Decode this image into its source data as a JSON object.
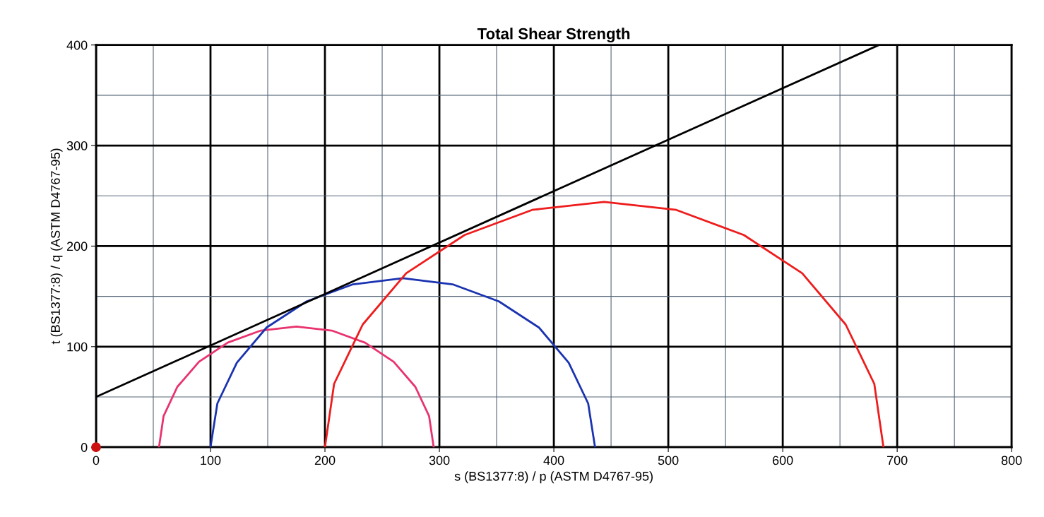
{
  "chart_data": {
    "type": "line",
    "title": "Total Shear Strength",
    "xlabel": "s (BS1377:8) / p (ASTM D4767-95)",
    "ylabel": "t (BS1377:8) / q (ASTM D4767-95)",
    "xlim": [
      0,
      800
    ],
    "ylim": [
      0,
      400
    ],
    "xticks": [
      0,
      {
        "value": 50,
        "label": null
      },
      100,
      {
        "value": 150,
        "label": null
      },
      200,
      {
        "value": 250,
        "label": null
      },
      300,
      {
        "value": 350,
        "label": null
      },
      400,
      {
        "value": 450,
        "label": null
      },
      500,
      {
        "value": 550,
        "label": null
      },
      600,
      {
        "value": 650,
        "label": null
      },
      700,
      {
        "value": 750,
        "label": null
      },
      800
    ],
    "yticks": [
      0,
      {
        "value": 50,
        "label": null
      },
      100,
      {
        "value": 150,
        "label": null
      },
      200,
      {
        "value": 250,
        "label": null
      },
      300,
      {
        "value": 350,
        "label": null
      },
      400
    ],
    "grid": true,
    "marker": "none",
    "line_style": "solid",
    "series": [
      {
        "color": "#e8336e",
        "x": [
          55,
          59,
          71,
          90,
          115,
          144,
          175,
          206,
          235,
          260,
          279,
          291,
          295
        ],
        "values": [
          0,
          31,
          60,
          85,
          104,
          116,
          120,
          116,
          104,
          85,
          60,
          31,
          0
        ]
      },
      {
        "color": "#1a33b0",
        "x": [
          100,
          106,
          123,
          149,
          184,
          224.5,
          268,
          311.5,
          352,
          387,
          413,
          430,
          436
        ],
        "values": [
          0,
          43.5,
          84,
          119,
          145,
          162,
          168,
          162,
          145,
          119,
          84,
          43.5,
          0
        ]
      },
      {
        "color": "#ee1c1c",
        "x": [
          200,
          208,
          233,
          271,
          322,
          381,
          444,
          507,
          566,
          617,
          655,
          680,
          688
        ],
        "values": [
          0,
          63,
          122,
          173,
          211,
          236,
          244,
          236,
          211,
          173,
          122,
          63,
          0
        ]
      },
      {
        "color": "#000000",
        "x": [
          0,
          684
        ],
        "values": [
          50,
          400
        ]
      },
      {
        "type": "scatter",
        "marker": "circle",
        "color": "#cc1111",
        "x": [
          0
        ],
        "values": [
          0
        ]
      }
    ]
  }
}
